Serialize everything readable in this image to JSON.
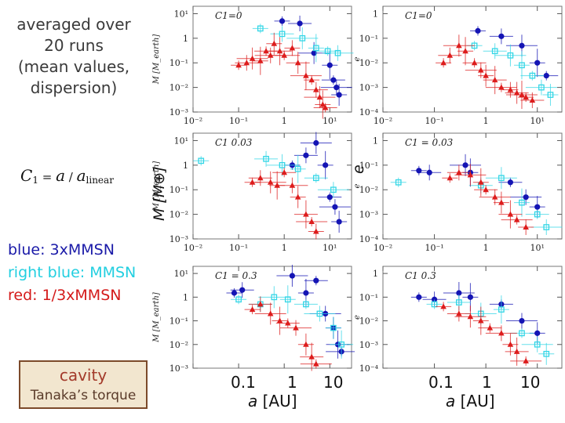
{
  "side_notes": {
    "lines": [
      "averaged over",
      "20 runs",
      "(mean values,",
      "dispersion)"
    ],
    "formula": {
      "lhs": "C",
      "lhs_sub": "1",
      "equals": " = ",
      "num": "a",
      "slash": " / ",
      "den": "a",
      "den_sub": "linear"
    },
    "legend": [
      {
        "text": "blue: 3xMMSN",
        "color": "#1a1aa8"
      },
      {
        "text": "right blue: MMSN",
        "color": "#22cfe0"
      },
      {
        "text": "red: 1/3xMMSN",
        "color": "#d41a1a"
      }
    ],
    "cavity_box": {
      "title": "cavity",
      "subtitle": "Tanaka’s torque"
    }
  },
  "axis_labels": {
    "mass_small": "M [M_earth]",
    "mass_big": "M [M⊕]",
    "ecc_small": "e",
    "ecc_big": "e",
    "x_big_prefix": "a",
    "x_big_unit": " [AU]",
    "x_big_ticks": [
      "0.1",
      "1",
      "10"
    ]
  },
  "colors": {
    "blue": "#1414b4",
    "cyan": "#33d6e6",
    "red": "#dd1c1c"
  },
  "chart_data": [
    {
      "type": "scatter",
      "title": "C1=0",
      "quantity": "M",
      "xscale": "log",
      "yscale": "log",
      "xlim": [
        0.01,
        30
      ],
      "ylim": [
        0.001,
        20
      ],
      "xticks": [
        {
          "v": 0.01,
          "label": "10⁻²"
        },
        {
          "v": 0.1,
          "label": "10⁻¹"
        },
        {
          "v": 1,
          "label": "1"
        },
        {
          "v": 10,
          "label": "10¹"
        }
      ],
      "yticks": [
        {
          "v": 10,
          "label": "10¹"
        },
        {
          "v": 1,
          "label": "1"
        },
        {
          "v": 0.1,
          "label": "10⁻¹"
        },
        {
          "v": 0.01,
          "label": "10⁻²"
        },
        {
          "v": 0.001,
          "label": "10⁻³"
        }
      ],
      "series": [
        {
          "name": "3xMMSN",
          "color": "blue",
          "marker": "circle",
          "x": [
            0.9,
            2.2,
            4.5,
            10,
            12,
            14,
            16
          ],
          "y": [
            5,
            4,
            0.25,
            0.08,
            0.02,
            0.01,
            0.005
          ]
        },
        {
          "name": "MMSN",
          "color": "cyan",
          "marker": "square",
          "x": [
            0.3,
            0.9,
            2.5,
            5,
            9,
            15
          ],
          "y": [
            2.5,
            1.5,
            1.0,
            0.4,
            0.3,
            0.25
          ]
        },
        {
          "name": "1/3xMMSN",
          "color": "red",
          "marker": "triangle",
          "x": [
            0.1,
            0.15,
            0.2,
            0.3,
            0.4,
            0.5,
            0.6,
            0.8,
            1.0,
            1.5,
            2.0,
            3.0,
            4.0,
            5.0,
            6.0,
            7.0,
            8.0
          ],
          "y": [
            0.08,
            0.1,
            0.15,
            0.12,
            0.3,
            0.2,
            0.6,
            0.3,
            0.2,
            0.4,
            0.1,
            0.03,
            0.02,
            0.008,
            0.004,
            0.002,
            0.0015
          ]
        }
      ]
    },
    {
      "type": "scatter",
      "title": "C1=0",
      "quantity": "e",
      "xscale": "log",
      "yscale": "log",
      "xlim": [
        0.01,
        30
      ],
      "ylim": [
        0.0001,
        2
      ],
      "xticks": [
        {
          "v": 0.01,
          "label": "10⁻²"
        },
        {
          "v": 0.1,
          "label": "10⁻¹"
        },
        {
          "v": 1,
          "label": "1"
        },
        {
          "v": 10,
          "label": "10¹"
        }
      ],
      "yticks": [
        {
          "v": 1,
          "label": "1"
        },
        {
          "v": 0.1,
          "label": "10⁻¹"
        },
        {
          "v": 0.01,
          "label": "10⁻²"
        },
        {
          "v": 0.001,
          "label": "10⁻³"
        },
        {
          "v": 0.0001,
          "label": "10⁻⁴"
        }
      ],
      "series": [
        {
          "name": "3xMMSN",
          "color": "blue",
          "marker": "circle",
          "x": [
            0.7,
            2.0,
            5.0,
            10,
            15
          ],
          "y": [
            0.2,
            0.12,
            0.05,
            0.01,
            0.003
          ]
        },
        {
          "name": "MMSN",
          "color": "cyan",
          "marker": "square",
          "x": [
            0.6,
            1.5,
            3,
            5,
            8,
            12,
            18
          ],
          "y": [
            0.05,
            0.03,
            0.02,
            0.008,
            0.003,
            0.001,
            0.0005
          ]
        },
        {
          "name": "1/3xMMSN",
          "color": "red",
          "marker": "triangle",
          "x": [
            0.15,
            0.2,
            0.3,
            0.4,
            0.6,
            0.8,
            1.0,
            1.5,
            2,
            3,
            4,
            5,
            6,
            8
          ],
          "y": [
            0.01,
            0.02,
            0.05,
            0.03,
            0.01,
            0.005,
            0.003,
            0.002,
            0.001,
            0.0008,
            0.0006,
            0.0005,
            0.0004,
            0.0003
          ]
        }
      ]
    },
    {
      "type": "scatter",
      "title": "C1 0.03",
      "quantity": "M",
      "xscale": "log",
      "yscale": "log",
      "xlim": [
        0.01,
        30
      ],
      "ylim": [
        0.001,
        20
      ],
      "xticks": [
        {
          "v": 0.01,
          "label": "10⁻²"
        },
        {
          "v": 0.1,
          "label": "10⁻¹"
        },
        {
          "v": 1,
          "label": "1"
        },
        {
          "v": 10,
          "label": "10¹"
        }
      ],
      "yticks": [
        {
          "v": 10,
          "label": "10¹"
        },
        {
          "v": 1,
          "label": "1"
        },
        {
          "v": 0.1,
          "label": "10⁻¹"
        },
        {
          "v": 0.01,
          "label": "10⁻²"
        },
        {
          "v": 0.001,
          "label": "10⁻³"
        }
      ],
      "series": [
        {
          "name": "3xMMSN",
          "color": "blue",
          "marker": "circle",
          "x": [
            1.5,
            3,
            5,
            8,
            10,
            13,
            16
          ],
          "y": [
            1.0,
            2.5,
            8,
            1,
            0.05,
            0.02,
            0.005
          ]
        },
        {
          "name": "MMSN",
          "color": "cyan",
          "marker": "square",
          "x": [
            0.015,
            0.4,
            0.9,
            2,
            5,
            12
          ],
          "y": [
            1.5,
            1.8,
            1.0,
            0.7,
            0.3,
            0.1
          ]
        },
        {
          "name": "1/3xMMSN",
          "color": "red",
          "marker": "triangle",
          "x": [
            0.2,
            0.3,
            0.5,
            0.7,
            1.0,
            1.5,
            2,
            3,
            4,
            5
          ],
          "y": [
            0.2,
            0.3,
            0.2,
            0.15,
            0.5,
            0.15,
            0.05,
            0.01,
            0.005,
            0.002
          ]
        }
      ]
    },
    {
      "type": "scatter",
      "title": "C1 = 0.03",
      "quantity": "e",
      "xscale": "log",
      "yscale": "log",
      "xlim": [
        0.01,
        30
      ],
      "ylim": [
        0.0001,
        2
      ],
      "xticks": [
        {
          "v": 0.01,
          "label": "10⁻²"
        },
        {
          "v": 0.1,
          "label": "10⁻¹"
        },
        {
          "v": 1,
          "label": "1"
        },
        {
          "v": 10,
          "label": "10¹"
        }
      ],
      "yticks": [
        {
          "v": 1,
          "label": "1"
        },
        {
          "v": 0.1,
          "label": "10⁻¹"
        },
        {
          "v": 0.01,
          "label": "10⁻²"
        },
        {
          "v": 0.001,
          "label": "10⁻³"
        },
        {
          "v": 0.0001,
          "label": "10⁻⁴"
        }
      ],
      "series": [
        {
          "name": "3xMMSN",
          "color": "blue",
          "marker": "circle",
          "x": [
            0.05,
            0.08,
            0.4,
            0.5,
            3,
            6,
            10
          ],
          "y": [
            0.06,
            0.05,
            0.1,
            0.05,
            0.02,
            0.005,
            0.002
          ]
        },
        {
          "name": "MMSN",
          "color": "cyan",
          "marker": "square",
          "x": [
            0.02,
            0.8,
            2,
            5,
            10,
            15
          ],
          "y": [
            0.02,
            0.015,
            0.03,
            0.003,
            0.001,
            0.0003
          ]
        },
        {
          "name": "1/3xMMSN",
          "color": "red",
          "marker": "triangle",
          "x": [
            0.2,
            0.3,
            0.5,
            0.8,
            1.0,
            1.5,
            2,
            3,
            4,
            6
          ],
          "y": [
            0.03,
            0.05,
            0.04,
            0.02,
            0.01,
            0.005,
            0.003,
            0.001,
            0.0006,
            0.0003
          ]
        }
      ]
    },
    {
      "type": "scatter",
      "title": "C1 = 0.3",
      "quantity": "M",
      "xscale": "log",
      "yscale": "log",
      "xlim": [
        0.01,
        30
      ],
      "ylim": [
        0.001,
        20
      ],
      "xticks": [],
      "yticks": [
        {
          "v": 10,
          "label": "10¹"
        },
        {
          "v": 1,
          "label": "1"
        },
        {
          "v": 0.1,
          "label": "10⁻¹"
        },
        {
          "v": 0.01,
          "label": "10⁻²"
        },
        {
          "v": 0.001,
          "label": "10⁻³"
        }
      ],
      "series": [
        {
          "name": "3xMMSN",
          "color": "blue",
          "marker": "circle",
          "x": [
            0.08,
            0.12,
            1.5,
            3,
            5,
            8,
            12,
            15,
            18
          ],
          "y": [
            1.5,
            2.0,
            8,
            1.5,
            5,
            0.2,
            0.05,
            0.01,
            0.005
          ]
        },
        {
          "name": "MMSN",
          "color": "cyan",
          "marker": "square",
          "x": [
            0.1,
            0.3,
            0.6,
            1.2,
            3,
            6,
            12,
            18
          ],
          "y": [
            0.8,
            0.5,
            1.0,
            0.8,
            0.5,
            0.2,
            0.05,
            0.01
          ]
        },
        {
          "name": "1/3xMMSN",
          "color": "red",
          "marker": "triangle",
          "x": [
            0.2,
            0.3,
            0.5,
            0.8,
            1.2,
            1.8,
            3,
            4,
            5
          ],
          "y": [
            0.3,
            0.5,
            0.2,
            0.1,
            0.08,
            0.05,
            0.01,
            0.003,
            0.0015
          ]
        }
      ]
    },
    {
      "type": "scatter",
      "title": "C1 0.3",
      "quantity": "e",
      "xscale": "log",
      "yscale": "log",
      "xlim": [
        0.01,
        30
      ],
      "ylim": [
        0.0001,
        2
      ],
      "xticks": [],
      "yticks": [
        {
          "v": 1,
          "label": "1"
        },
        {
          "v": 0.1,
          "label": "10⁻¹"
        },
        {
          "v": 0.01,
          "label": "10⁻²"
        },
        {
          "v": 0.001,
          "label": "10⁻³"
        },
        {
          "v": 0.0001,
          "label": "10⁻⁴"
        }
      ],
      "series": [
        {
          "name": "3xMMSN",
          "color": "blue",
          "marker": "circle",
          "x": [
            0.05,
            0.1,
            0.3,
            0.5,
            2,
            5,
            10
          ],
          "y": [
            0.1,
            0.08,
            0.15,
            0.1,
            0.05,
            0.01,
            0.003
          ]
        },
        {
          "name": "MMSN",
          "color": "cyan",
          "marker": "square",
          "x": [
            0.1,
            0.3,
            0.8,
            2,
            5,
            10,
            15
          ],
          "y": [
            0.05,
            0.06,
            0.02,
            0.03,
            0.003,
            0.001,
            0.0004
          ]
        },
        {
          "name": "1/3xMMSN",
          "color": "red",
          "marker": "triangle",
          "x": [
            0.15,
            0.3,
            0.5,
            0.8,
            1.2,
            2,
            3,
            4,
            6
          ],
          "y": [
            0.04,
            0.02,
            0.015,
            0.01,
            0.005,
            0.003,
            0.001,
            0.0005,
            0.0002
          ]
        }
      ]
    }
  ]
}
